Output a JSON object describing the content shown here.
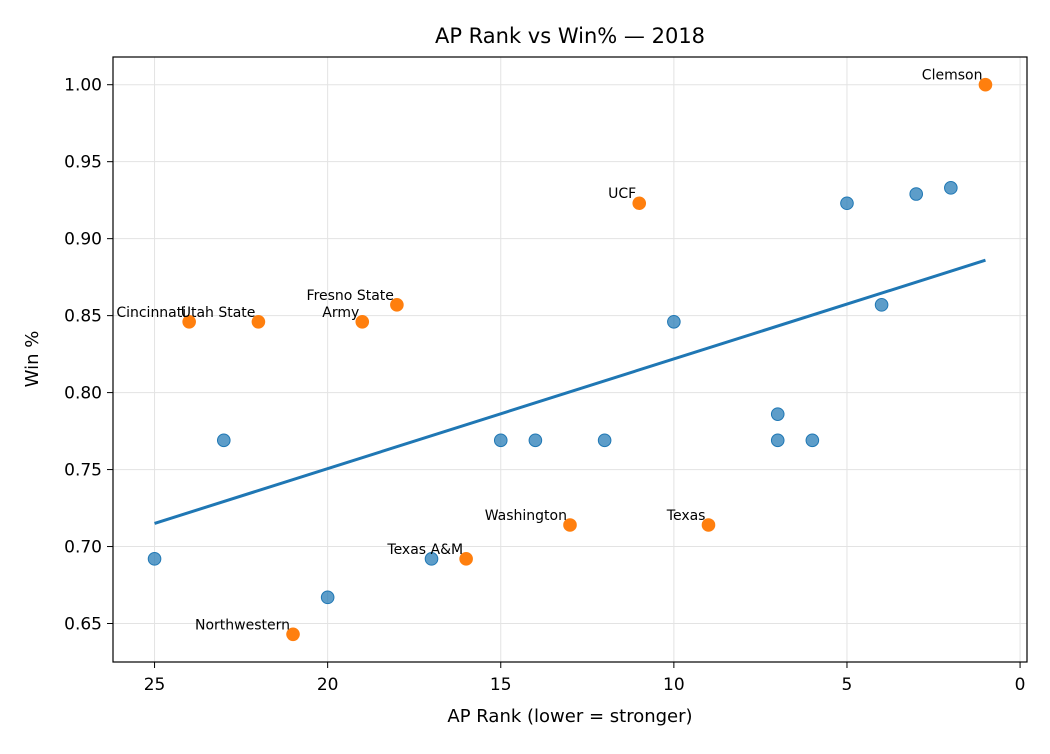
{
  "chart_data": {
    "type": "scatter",
    "title": "AP Rank vs Win% — 2018",
    "xlabel": "AP Rank (lower = stronger)",
    "ylabel": "Win %",
    "xlim": [
      26.2,
      -0.2
    ],
    "ylim": [
      0.625,
      1.018
    ],
    "x_inverted": true,
    "grid": true,
    "xticks": [
      25,
      20,
      15,
      10,
      5,
      0
    ],
    "yticks": [
      0.65,
      0.7,
      0.75,
      0.8,
      0.85,
      0.9,
      0.95,
      1.0
    ],
    "colors": {
      "regular": "#1f77b4",
      "highlight": "#ff7f0e",
      "trend": "#1f77b4"
    },
    "points": [
      {
        "x": 1,
        "y": 1.0,
        "label": "Clemson",
        "highlight": true
      },
      {
        "x": 2,
        "y": 0.933,
        "label": "",
        "highlight": false
      },
      {
        "x": 3,
        "y": 0.929,
        "label": "",
        "highlight": false
      },
      {
        "x": 4,
        "y": 0.857,
        "label": "",
        "highlight": false
      },
      {
        "x": 5,
        "y": 0.923,
        "label": "",
        "highlight": false
      },
      {
        "x": 6,
        "y": 0.769,
        "label": "",
        "highlight": false
      },
      {
        "x": 7,
        "y": 0.786,
        "label": "",
        "highlight": false
      },
      {
        "x": 7,
        "y": 0.769,
        "label": "",
        "highlight": false
      },
      {
        "x": 9,
        "y": 0.714,
        "label": "Texas",
        "highlight": true
      },
      {
        "x": 10,
        "y": 0.846,
        "label": "",
        "highlight": false
      },
      {
        "x": 11,
        "y": 0.923,
        "label": "UCF",
        "highlight": true
      },
      {
        "x": 12,
        "y": 0.769,
        "label": "",
        "highlight": false
      },
      {
        "x": 13,
        "y": 0.714,
        "label": "Washington",
        "highlight": true
      },
      {
        "x": 14,
        "y": 0.769,
        "label": "",
        "highlight": false
      },
      {
        "x": 15,
        "y": 0.769,
        "label": "",
        "highlight": false
      },
      {
        "x": 16,
        "y": 0.692,
        "label": "Texas A&M",
        "highlight": true
      },
      {
        "x": 17,
        "y": 0.692,
        "label": "",
        "highlight": false
      },
      {
        "x": 18,
        "y": 0.857,
        "label": "Fresno State",
        "highlight": true
      },
      {
        "x": 19,
        "y": 0.846,
        "label": "Army",
        "highlight": true
      },
      {
        "x": 20,
        "y": 0.667,
        "label": "",
        "highlight": false
      },
      {
        "x": 21,
        "y": 0.643,
        "label": "Northwestern",
        "highlight": true
      },
      {
        "x": 22,
        "y": 0.846,
        "label": "Utah State",
        "highlight": true
      },
      {
        "x": 23,
        "y": 0.769,
        "label": "",
        "highlight": false
      },
      {
        "x": 24,
        "y": 0.846,
        "label": "Cincinnati",
        "highlight": true
      },
      {
        "x": 25,
        "y": 0.692,
        "label": "",
        "highlight": false
      }
    ],
    "trend_line": {
      "x": [
        25,
        1
      ],
      "y": [
        0.715,
        0.886
      ]
    }
  }
}
